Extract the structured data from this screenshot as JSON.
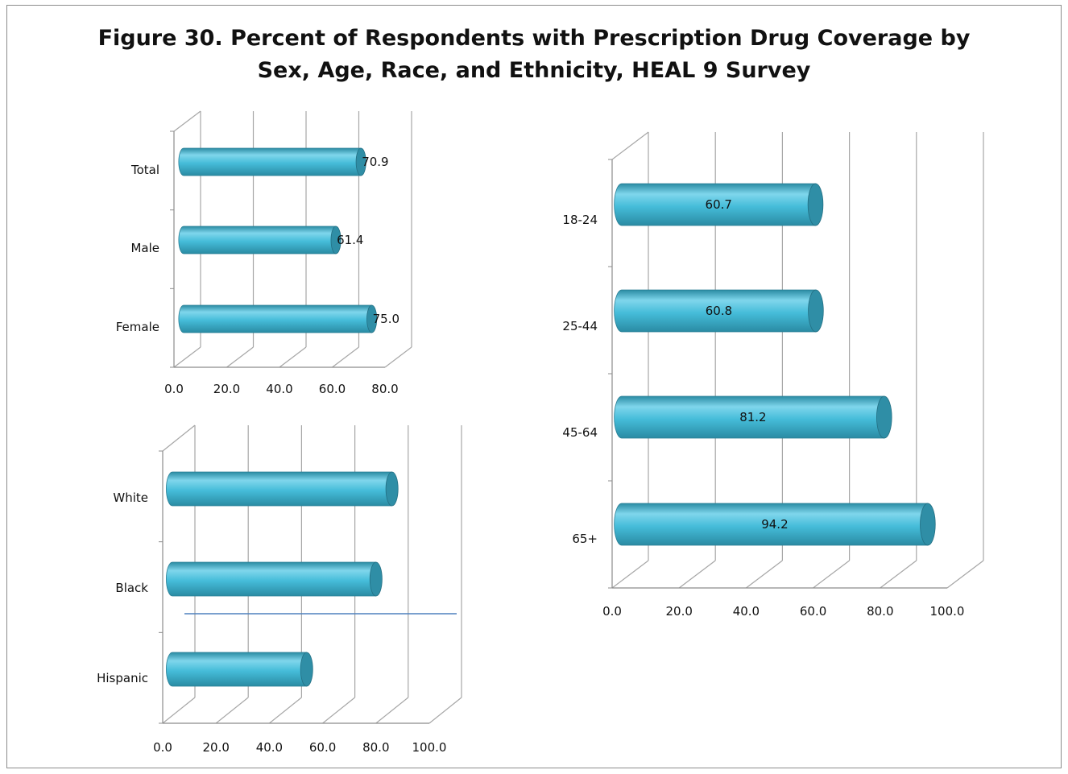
{
  "title": {
    "line1": "Figure 30. Percent of Respondents with Prescription Drug Coverage by",
    "line2": "Sex, Age, Race, and Ethnicity, HEAL 9 Survey"
  },
  "colors": {
    "bar_face": "#45bcd9",
    "bar_highlight": "#7fd6ec",
    "bar_shadow": "#2a8ba3",
    "bar_cap": "#2f8ea6",
    "grid": "#a6a6a6",
    "axis": "#8c8c8c",
    "overlay_line": "#4f81bd"
  },
  "chart_data": [
    {
      "type": "bar",
      "orientation": "horizontal",
      "categories": [
        "Total",
        "Male",
        "Female"
      ],
      "values": [
        70.9,
        61.4,
        75.0
      ],
      "value_labels": [
        "70.9",
        "61.4",
        "75.0"
      ],
      "xlim": [
        0,
        80
      ],
      "ticks": [
        "0.0",
        "20.0",
        "40.0",
        "60.0",
        "80.0"
      ],
      "grid": true
    },
    {
      "type": "bar",
      "orientation": "horizontal",
      "categories": [
        "White",
        "Black",
        "Hispanic"
      ],
      "values": [
        86.0,
        80.0,
        54.0
      ],
      "value_labels": [
        "",
        "",
        ""
      ],
      "xlim": [
        0,
        100
      ],
      "ticks": [
        "0.0",
        "20.0",
        "40.0",
        "60.0",
        "80.0",
        "100.0"
      ],
      "grid": true
    },
    {
      "type": "bar",
      "orientation": "horizontal",
      "categories": [
        "18-24",
        "25-44",
        "45-64",
        "65+"
      ],
      "values": [
        60.7,
        60.8,
        81.2,
        94.2
      ],
      "value_labels": [
        "60.7",
        "60.8",
        "81.2",
        "94.2"
      ],
      "xlim": [
        0,
        100
      ],
      "ticks": [
        "0.0",
        "20.0",
        "40.0",
        "60.0",
        "80.0",
        "100.0"
      ],
      "grid": true
    }
  ]
}
